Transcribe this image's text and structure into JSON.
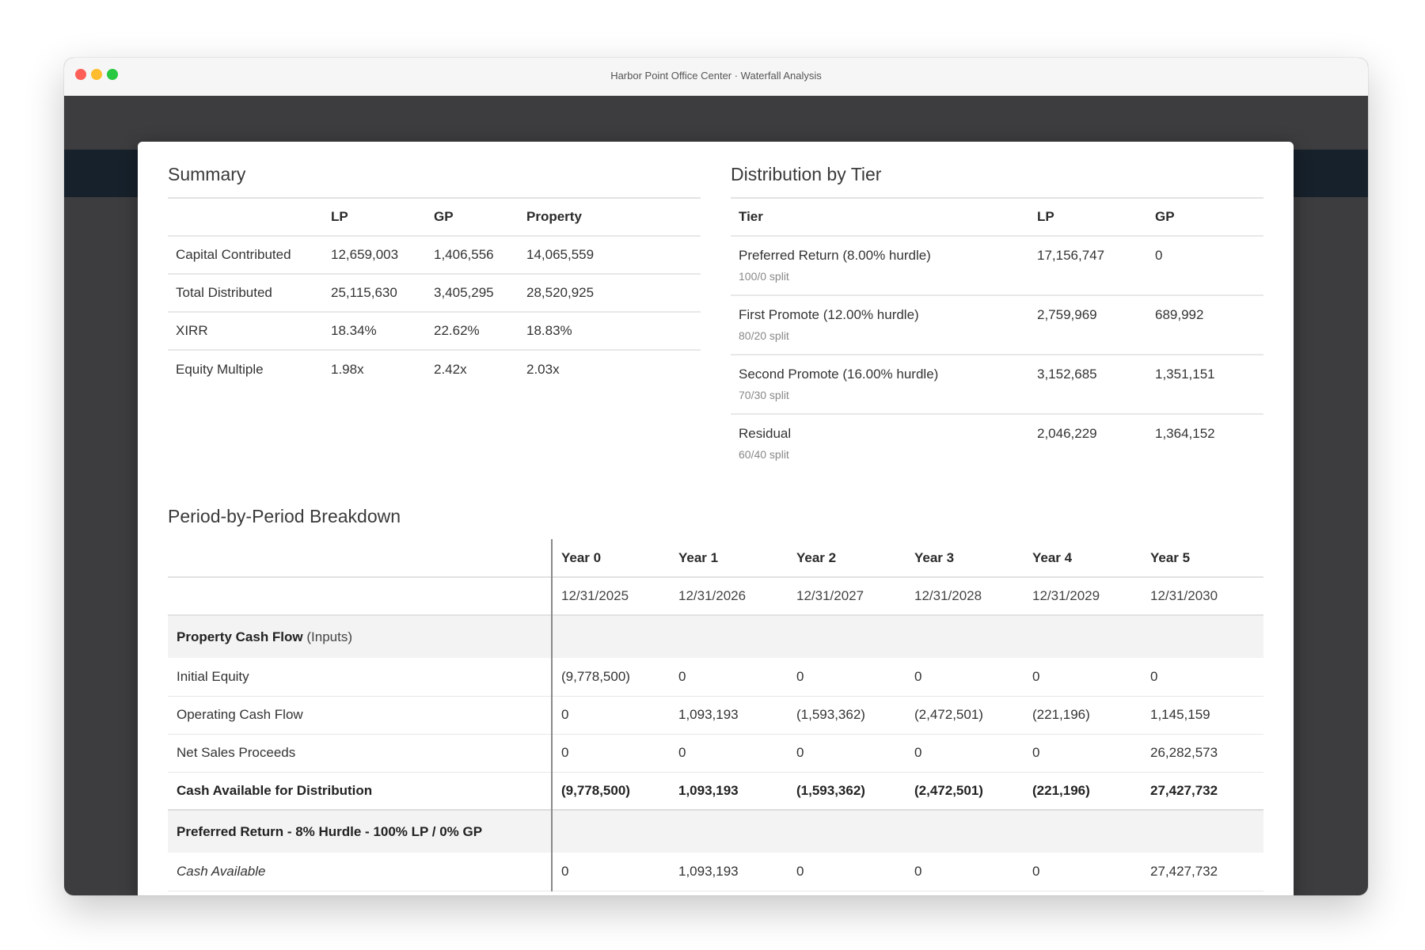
{
  "window": {
    "title": "Harbor Point Office Center · Waterfall Analysis"
  },
  "summary": {
    "title": "Summary",
    "columns": [
      "LP",
      "GP",
      "Property"
    ],
    "rows": [
      {
        "label": "Capital Contributed",
        "lp": "12,659,003",
        "gp": "1,406,556",
        "property": "14,065,559"
      },
      {
        "label": "Total Distributed",
        "lp": "25,115,630",
        "gp": "3,405,295",
        "property": "28,520,925"
      },
      {
        "label": "XIRR",
        "lp": "18.34%",
        "gp": "22.62%",
        "property": "18.83%"
      },
      {
        "label": "Equity Multiple",
        "lp": "1.98x",
        "gp": "2.42x",
        "property": "2.03x"
      }
    ]
  },
  "tiers": {
    "title": "Distribution by Tier",
    "columns": [
      "Tier",
      "LP",
      "GP"
    ],
    "rows": [
      {
        "name": "Preferred Return (8.00% hurdle)",
        "split": "100/0 split",
        "lp": "17,156,747",
        "gp": "0"
      },
      {
        "name": "First Promote (12.00% hurdle)",
        "split": "80/20 split",
        "lp": "2,759,969",
        "gp": "689,992"
      },
      {
        "name": "Second Promote (16.00% hurdle)",
        "split": "70/30 split",
        "lp": "3,152,685",
        "gp": "1,351,151"
      },
      {
        "name": "Residual",
        "split": "60/40 split",
        "lp": "2,046,229",
        "gp": "1,364,152"
      }
    ]
  },
  "periods": {
    "title": "Period-by-Period Breakdown",
    "years": [
      "Year 0",
      "Year 1",
      "Year 2",
      "Year 3",
      "Year 4",
      "Year 5"
    ],
    "dates": [
      "12/31/2025",
      "12/31/2026",
      "12/31/2027",
      "12/31/2028",
      "12/31/2029",
      "12/31/2030"
    ],
    "group1": {
      "label": "Property Cash Flow",
      "suffix": " (Inputs)"
    },
    "rows": [
      {
        "label": "Initial Equity",
        "values": [
          "(9,778,500)",
          "0",
          "0",
          "0",
          "0",
          "0"
        ]
      },
      {
        "label": "Operating Cash Flow",
        "values": [
          "0",
          "1,093,193",
          "(1,593,362)",
          "(2,472,501)",
          "(221,196)",
          "1,145,159"
        ]
      },
      {
        "label": "Net Sales Proceeds",
        "values": [
          "0",
          "0",
          "0",
          "0",
          "0",
          "26,282,573"
        ]
      }
    ],
    "total": {
      "label": "Cash Available for Distribution",
      "values": [
        "(9,778,500)",
        "1,093,193",
        "(1,593,362)",
        "(2,472,501)",
        "(221,196)",
        "27,427,732"
      ]
    },
    "group2": {
      "label": "Preferred Return - 8% Hurdle - 100% LP / 0% GP"
    },
    "cash_available": {
      "label": "Cash Available",
      "values": [
        "0",
        "1,093,193",
        "0",
        "0",
        "0",
        "27,427,732"
      ]
    }
  }
}
